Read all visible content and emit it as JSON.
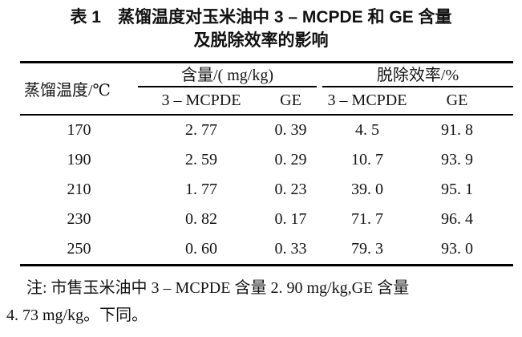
{
  "page": {
    "background": "#ffffff",
    "text_color": "#141414",
    "rule_color": "#000000"
  },
  "title": {
    "line1": "表 1　蒸馏温度对玉米油中 3 – MCPDE 和 GE 含量",
    "line2": "及脱除效率的影响"
  },
  "table": {
    "row_axis_header": "蒸馏温度/℃",
    "groups": [
      {
        "label": "含量/( mg/kg)",
        "sub_columns": [
          "3 – MCPDE",
          "GE"
        ]
      },
      {
        "label": "脱除效率/%",
        "sub_columns": [
          "3 – MCPDE",
          "GE"
        ]
      }
    ],
    "rows": [
      {
        "temp": "170",
        "content_mcpde": "2. 77",
        "content_ge": "0. 39",
        "removal_mcpde": "4. 5",
        "removal_ge": "91. 8"
      },
      {
        "temp": "190",
        "content_mcpde": "2. 59",
        "content_ge": "0. 29",
        "removal_mcpde": "10. 7",
        "removal_ge": "93. 9"
      },
      {
        "temp": "210",
        "content_mcpde": "1. 77",
        "content_ge": "0. 23",
        "removal_mcpde": "39. 0",
        "removal_ge": "95. 1"
      },
      {
        "temp": "230",
        "content_mcpde": "0. 82",
        "content_ge": "0. 17",
        "removal_mcpde": "71. 7",
        "removal_ge": "96. 4"
      },
      {
        "temp": "250",
        "content_mcpde": "0. 60",
        "content_ge": "0. 33",
        "removal_mcpde": "79. 3",
        "removal_ge": "93. 0"
      }
    ]
  },
  "footnote": {
    "line1": "注: 市售玉米油中 3 – MCPDE 含量 2. 90 mg/kg,GE 含量",
    "line2": "4. 73 mg/kg。下同。"
  },
  "chart_data": {
    "type": "table",
    "title": "表1 蒸馏温度对玉米油中3–MCPDE和GE含量及脱除效率的影响",
    "columns": [
      "蒸馏温度/℃",
      "含量 3–MCPDE/(mg/kg)",
      "含量 GE/(mg/kg)",
      "脱除效率 3–MCPDE/%",
      "脱除效率 GE/%"
    ],
    "rows": [
      [
        170,
        2.77,
        0.39,
        4.5,
        91.8
      ],
      [
        190,
        2.59,
        0.29,
        10.7,
        93.9
      ],
      [
        210,
        1.77,
        0.23,
        39.0,
        95.1
      ],
      [
        230,
        0.82,
        0.17,
        71.7,
        96.4
      ],
      [
        250,
        0.6,
        0.33,
        79.3,
        93.0
      ]
    ],
    "note": "市售玉米油中3–MCPDE含量2.90 mg/kg，GE含量4.73 mg/kg。下同。"
  }
}
